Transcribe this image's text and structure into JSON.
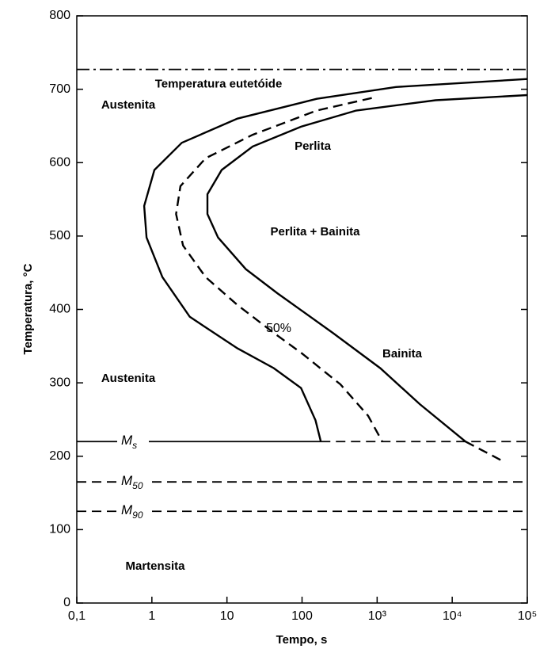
{
  "chart_data": {
    "type": "line",
    "x_label": "Tempo, s",
    "y_label": "Temperatura, °C",
    "xlog": true,
    "xlim": [
      0.1,
      100000
    ],
    "ylim": [
      0,
      800
    ],
    "xticks": [
      {
        "value": 0.1,
        "label": "0,1"
      },
      1,
      10,
      100,
      {
        "value": 1000,
        "label": "10³"
      },
      {
        "value": 10000,
        "label": "10⁴"
      },
      {
        "value": 100000,
        "label": "10⁵"
      }
    ],
    "yticks": [
      0,
      100,
      200,
      300,
      400,
      500,
      600,
      700,
      800
    ],
    "color": "#000000",
    "series": [
      {
        "style": "solid",
        "x": [
          100000.0,
          1780,
          157,
          13.8,
          2.5,
          1.08,
          0.79,
          0.85,
          1.38,
          3.2,
          13.8,
          42,
          97,
          151,
          178
        ],
        "values": [
          714,
          703,
          687,
          660,
          627,
          590,
          541,
          498,
          444,
          390,
          347,
          320,
          293,
          249,
          220
        ]
      },
      {
        "name": "50%",
        "style": "dashed",
        "x": [
          850,
          157,
          22,
          5.2,
          2.4,
          2.1,
          2.6,
          5.2,
          13.8,
          42,
          97,
          324,
          760,
          1170
        ],
        "values": [
          688,
          671,
          638,
          606,
          568,
          530,
          487,
          444,
          406,
          368,
          341,
          298,
          255,
          220
        ]
      },
      {
        "style": "solid",
        "x": [
          100000.0,
          6000,
          525,
          97,
          22,
          8.5,
          5.5,
          5.5,
          7.6,
          17.8,
          47,
          257,
          1100,
          3700,
          15000
        ],
        "values": [
          692,
          685,
          671,
          649,
          622,
          590,
          557,
          530,
          498,
          455,
          422,
          368,
          320,
          271,
          220
        ]
      },
      {
        "style": "dashed",
        "x": [
          15000,
          44000
        ],
        "values": [
          220,
          195
        ]
      }
    ],
    "hlines": [
      {
        "value": 727,
        "label": "Temperatura eutetóide",
        "style": "dashdot"
      },
      {
        "value": 220,
        "symbol": "M",
        "subscript": "s",
        "style": "solid-dashed"
      },
      {
        "value": 165,
        "symbol": "M",
        "subscript": "50",
        "style": "dashed"
      },
      {
        "value": 125,
        "symbol": "M",
        "subscript": "90",
        "style": "dashed"
      }
    ],
    "annotations": [
      "Austenita",
      "Perlita",
      "Perlita + Bainita",
      "Bainita",
      "Austenita",
      "Martensita"
    ]
  }
}
